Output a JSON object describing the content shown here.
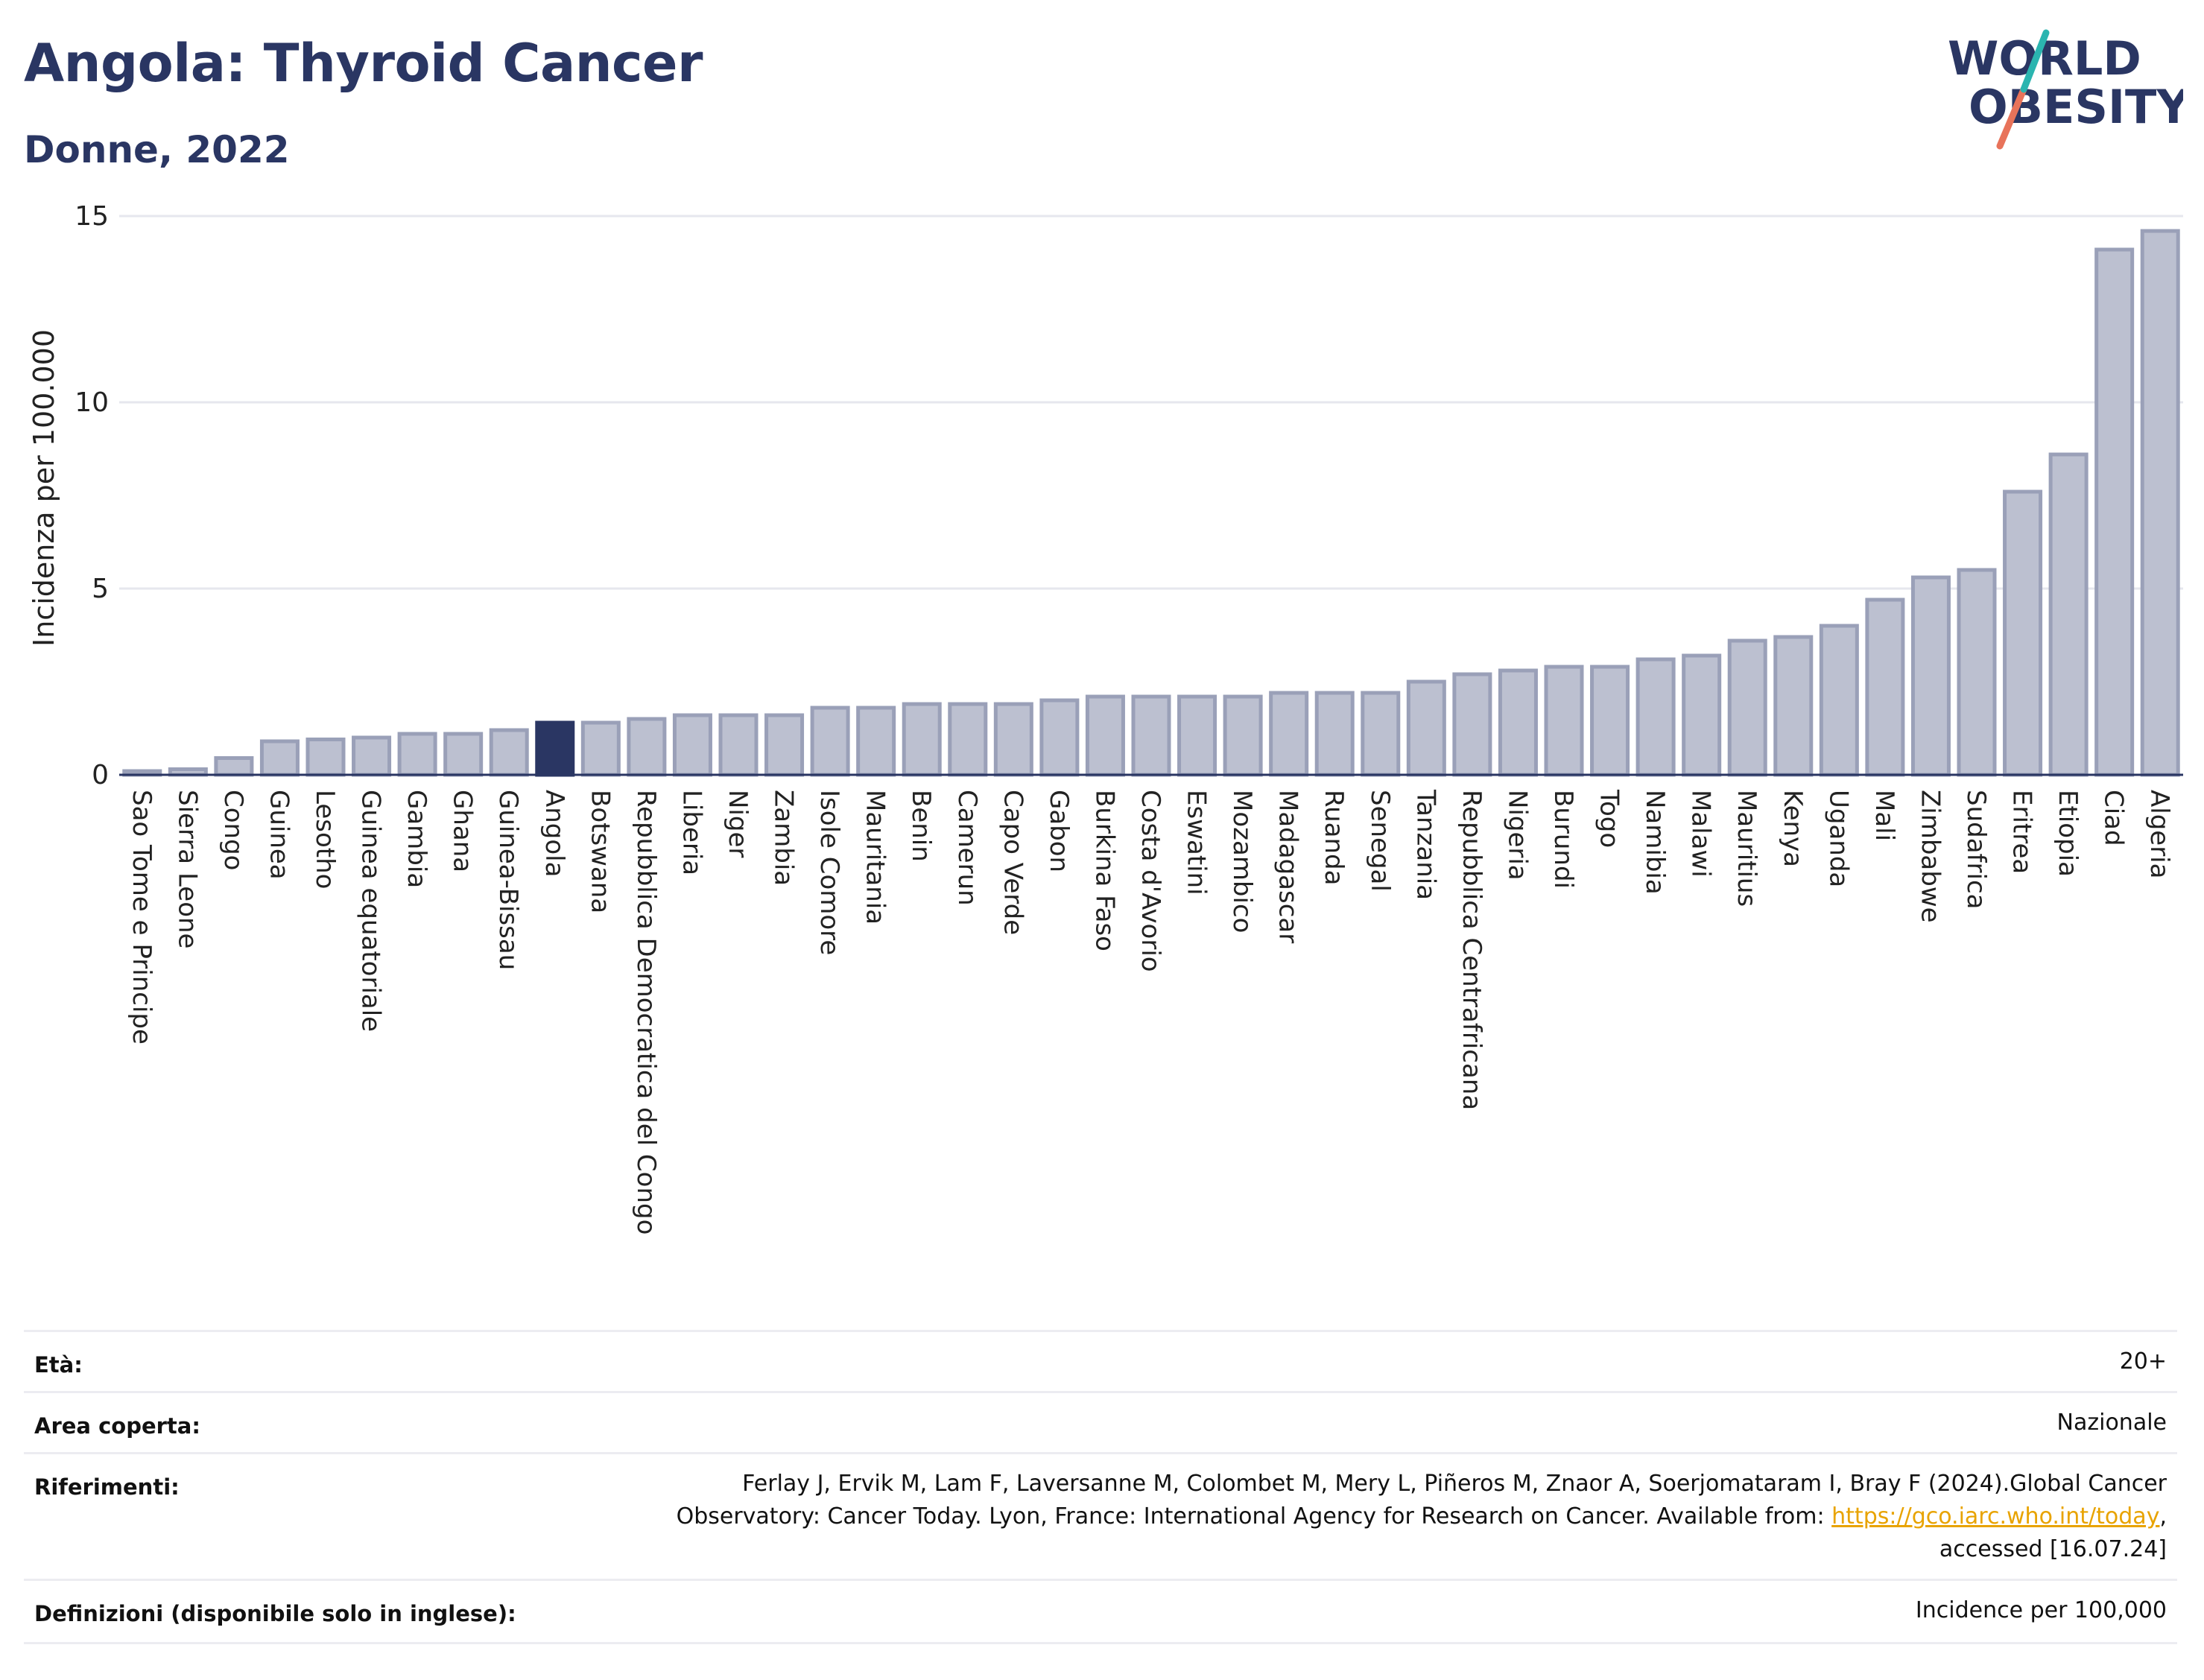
{
  "header": {
    "title": "Angola: Thyroid Cancer",
    "subtitle": "Donne, 2022"
  },
  "logo": {
    "line1": "WORLD",
    "line2": "OBESITY",
    "colors": {
      "text": "#2a3663",
      "slash_top": "#2bb5b0",
      "slash_bottom": "#e8735a"
    }
  },
  "chart_data": {
    "type": "bar",
    "ylabel": "Incidenza per 100.000",
    "ylim": [
      0,
      15
    ],
    "yticks": [
      0,
      5,
      10,
      15
    ],
    "grid": true,
    "highlight": "Angola",
    "colors": {
      "bar": "#bcc0d0",
      "bar_edge": "#9aa0b8",
      "highlight": "#2a3663"
    },
    "categories": [
      "Sao Tome e Principe",
      "Sierra Leone",
      "Congo",
      "Guinea",
      "Lesotho",
      "Guinea equatoriale",
      "Gambia",
      "Ghana",
      "Guinea-Bissau",
      "Angola",
      "Botswana",
      "Repubblica Democratica del Congo",
      "Liberia",
      "Niger",
      "Zambia",
      "Isole Comore",
      "Mauritania",
      "Benin",
      "Camerun",
      "Capo Verde",
      "Gabon",
      "Burkina Faso",
      "Costa d'Avorio",
      "Eswatini",
      "Mozambico",
      "Madagascar",
      "Ruanda",
      "Senegal",
      "Tanzania",
      "Repubblica Centrafricana",
      "Nigeria",
      "Burundi",
      "Togo",
      "Namibia",
      "Malawi",
      "Mauritius",
      "Kenya",
      "Uganda",
      "Mali",
      "Zimbabwe",
      "Sudafrica",
      "Eritrea",
      "Etiopia",
      "Ciad",
      "Algeria"
    ],
    "values": [
      0.1,
      0.15,
      0.45,
      0.9,
      0.95,
      1.0,
      1.1,
      1.1,
      1.2,
      1.4,
      1.4,
      1.5,
      1.6,
      1.6,
      1.6,
      1.8,
      1.8,
      1.9,
      1.9,
      1.9,
      2.0,
      2.1,
      2.1,
      2.1,
      2.1,
      2.2,
      2.2,
      2.2,
      2.5,
      2.7,
      2.8,
      2.9,
      2.9,
      3.1,
      3.2,
      3.6,
      3.7,
      4.0,
      4.7,
      5.3,
      5.5,
      7.6,
      8.6,
      14.1,
      14.6
    ]
  },
  "meta": {
    "age_label": "Età:",
    "age_value": "20+",
    "area_label": "Area coperta:",
    "area_value": "Nazionale",
    "ref_label": "Riferimenti:",
    "ref_line1": "Ferlay J, Ervik M, Lam F, Laversanne M, Colombet M, Mery L, Piñeros M, Znaor A, Soerjomataram I, Bray F (2024).Global Cancer",
    "ref_line2_prefix": "Observatory: Cancer Today. Lyon, France: International Agency for Research on Cancer. Available from: ",
    "ref_link": "https://gco.iarc.who.int/today",
    "ref_line2_suffix": ",",
    "ref_line3": "accessed [16.07.24]",
    "def_label": "Definizioni (disponibile solo in inglese):",
    "def_value": "Incidence per 100,000"
  }
}
